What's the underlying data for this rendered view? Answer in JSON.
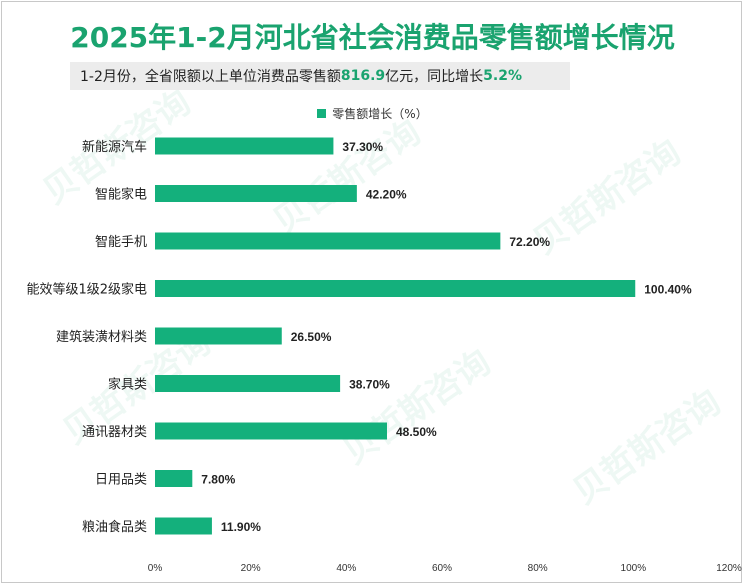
{
  "title": "2025年1-2月河北省社会消费品零售额增长情况",
  "subtitle": {
    "prefix": "1-2月份，全省限额以上单位消费品零售额",
    "amount": "816.9",
    "middle": "亿元，同比增长",
    "growth": "5.2%"
  },
  "colors": {
    "bar": "#14b07c",
    "title": "#1aa36f"
  },
  "watermark": "贝哲斯咨询",
  "chart_data": {
    "type": "bar",
    "orientation": "horizontal",
    "legend": "零售额增长（%）",
    "categories": [
      "新能源汽车",
      "智能家电",
      "智能手机",
      "能效等级1级2级家电",
      "建筑装潢材料类",
      "家具类",
      "通讯器材类",
      "日用品类",
      "粮油食品类"
    ],
    "values": [
      37.3,
      42.2,
      72.2,
      100.4,
      26.5,
      38.7,
      48.5,
      7.8,
      11.9
    ],
    "value_labels": [
      "37.30%",
      "42.20%",
      "72.20%",
      "100.40%",
      "26.50%",
      "38.70%",
      "48.50%",
      "7.80%",
      "11.90%"
    ],
    "x_ticks": [
      "0%",
      "20%",
      "40%",
      "60%",
      "80%",
      "100%",
      "120%"
    ],
    "xlim": [
      0,
      120
    ]
  }
}
